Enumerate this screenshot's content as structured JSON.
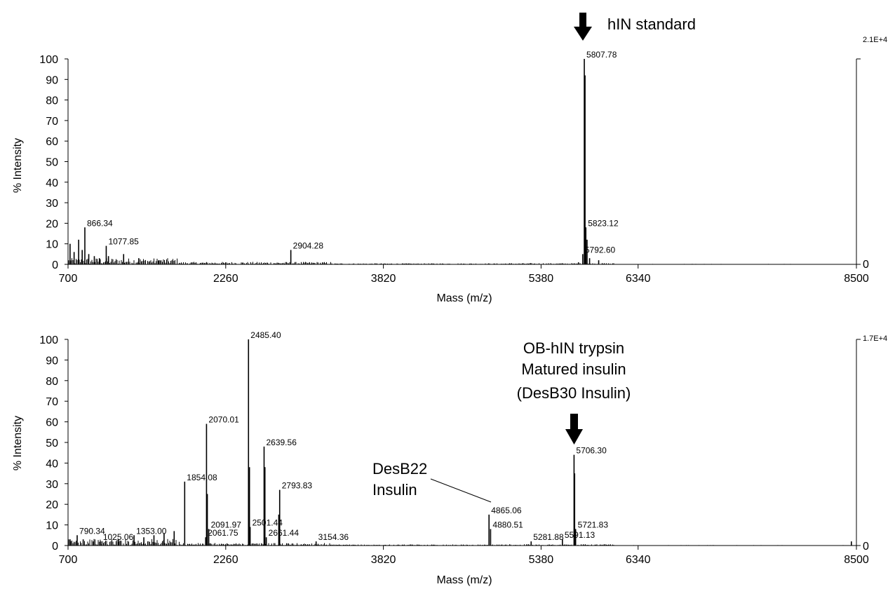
{
  "chart_data": [
    {
      "type": "bar",
      "subtype": "mass-spectrum",
      "xlabel": "Mass (m/z)",
      "ylabel": "% Intensity",
      "xlim": [
        700,
        8500
      ],
      "ylim": [
        0,
        100
      ],
      "x_ticks": [
        "700",
        "2260",
        "3820",
        "5380",
        "6340",
        "8500"
      ],
      "y_ticks": [
        "0",
        "10",
        "20",
        "30",
        "40",
        "50",
        "60",
        "70",
        "80",
        "90",
        "100"
      ],
      "right_axis_max_label": "2.1E+4",
      "right_axis_min_label": "0",
      "grid": false,
      "peaks": [
        {
          "mz": 720,
          "intensity": 10
        },
        {
          "mz": 760,
          "intensity": 6
        },
        {
          "mz": 805,
          "intensity": 12
        },
        {
          "mz": 840,
          "intensity": 7
        },
        {
          "mz": 866.34,
          "intensity": 18,
          "label": "866.34"
        },
        {
          "mz": 905,
          "intensity": 5
        },
        {
          "mz": 960,
          "intensity": 4
        },
        {
          "mz": 1010,
          "intensity": 3
        },
        {
          "mz": 1077.85,
          "intensity": 9,
          "label": "1077.85"
        },
        {
          "mz": 1100,
          "intensity": 4
        },
        {
          "mz": 1250,
          "intensity": 5
        },
        {
          "mz": 1400,
          "intensity": 3
        },
        {
          "mz": 1600,
          "intensity": 2
        },
        {
          "mz": 2904.28,
          "intensity": 7,
          "label": "2904.28"
        },
        {
          "mz": 5750,
          "intensity": 1
        },
        {
          "mz": 5792.6,
          "intensity": 5,
          "label": "5792.60"
        },
        {
          "mz": 5807.78,
          "intensity": 100,
          "label": "5807.78"
        },
        {
          "mz": 5815,
          "intensity": 92
        },
        {
          "mz": 5823.12,
          "intensity": 18,
          "label": "5823.12"
        },
        {
          "mz": 5835,
          "intensity": 12
        },
        {
          "mz": 5860,
          "intensity": 3
        },
        {
          "mz": 5950,
          "intensity": 2
        }
      ],
      "annotations": [
        {
          "text": "hIN standard",
          "mz": 5805,
          "arrow": true
        }
      ]
    },
    {
      "type": "bar",
      "subtype": "mass-spectrum",
      "xlabel": "Mass (m/z)",
      "ylabel": "% Intensity",
      "xlim": [
        700,
        8500
      ],
      "ylim": [
        0,
        100
      ],
      "x_ticks": [
        "700",
        "2260",
        "3820",
        "5380",
        "6340",
        "8500"
      ],
      "y_ticks": [
        "0",
        "10",
        "20",
        "30",
        "40",
        "50",
        "60",
        "70",
        "80",
        "90",
        "100"
      ],
      "right_axis_max_label": "1.7E+4",
      "right_axis_min_label": "0",
      "grid": false,
      "peaks": [
        {
          "mz": 720,
          "intensity": 3
        },
        {
          "mz": 790.34,
          "intensity": 5,
          "label": "790.34"
        },
        {
          "mz": 850,
          "intensity": 3
        },
        {
          "mz": 950,
          "intensity": 2
        },
        {
          "mz": 1025.06,
          "intensity": 2,
          "label": "1025.06"
        },
        {
          "mz": 1200,
          "intensity": 3
        },
        {
          "mz": 1353.0,
          "intensity": 5,
          "label": "1353.00"
        },
        {
          "mz": 1450,
          "intensity": 4
        },
        {
          "mz": 1550,
          "intensity": 5
        },
        {
          "mz": 1650,
          "intensity": 6
        },
        {
          "mz": 1750,
          "intensity": 7
        },
        {
          "mz": 1854.08,
          "intensity": 31,
          "label": "1854.08"
        },
        {
          "mz": 2061.75,
          "intensity": 4,
          "label": "2061.75"
        },
        {
          "mz": 2070.01,
          "intensity": 59,
          "label": "2070.01"
        },
        {
          "mz": 2078,
          "intensity": 25
        },
        {
          "mz": 2091.97,
          "intensity": 8,
          "label": "2091.97"
        },
        {
          "mz": 2485.4,
          "intensity": 100,
          "label": "2485.40"
        },
        {
          "mz": 2495,
          "intensity": 38
        },
        {
          "mz": 2501.44,
          "intensity": 9,
          "label": "2501.44"
        },
        {
          "mz": 2639.56,
          "intensity": 48,
          "label": "2639.56"
        },
        {
          "mz": 2648,
          "intensity": 38
        },
        {
          "mz": 2661.44,
          "intensity": 4,
          "label": "2661.44"
        },
        {
          "mz": 2785,
          "intensity": 15
        },
        {
          "mz": 2793.83,
          "intensity": 27,
          "label": "2793.83"
        },
        {
          "mz": 3154.36,
          "intensity": 2,
          "label": "3154.36"
        },
        {
          "mz": 4865.06,
          "intensity": 15,
          "label": "4865.06"
        },
        {
          "mz": 4880.51,
          "intensity": 8,
          "label": "4880.51"
        },
        {
          "mz": 5281.88,
          "intensity": 2,
          "label": "5281.88"
        },
        {
          "mz": 5591.13,
          "intensity": 3,
          "label": "5591.13"
        },
        {
          "mz": 5706.3,
          "intensity": 44,
          "label": "5706.30"
        },
        {
          "mz": 5712,
          "intensity": 35
        },
        {
          "mz": 5721.83,
          "intensity": 8,
          "label": "5721.83"
        },
        {
          "mz": 8450,
          "intensity": 2
        }
      ],
      "annotations": [
        {
          "lines": [
            "OB-hIN trypsin",
            "Matured insulin",
            "(DesB30 Insulin)"
          ],
          "mz": 5706.3,
          "arrow": true
        },
        {
          "lines": [
            "DesB22",
            "Insulin"
          ],
          "mz": 4865.06,
          "leader": true
        }
      ]
    }
  ]
}
